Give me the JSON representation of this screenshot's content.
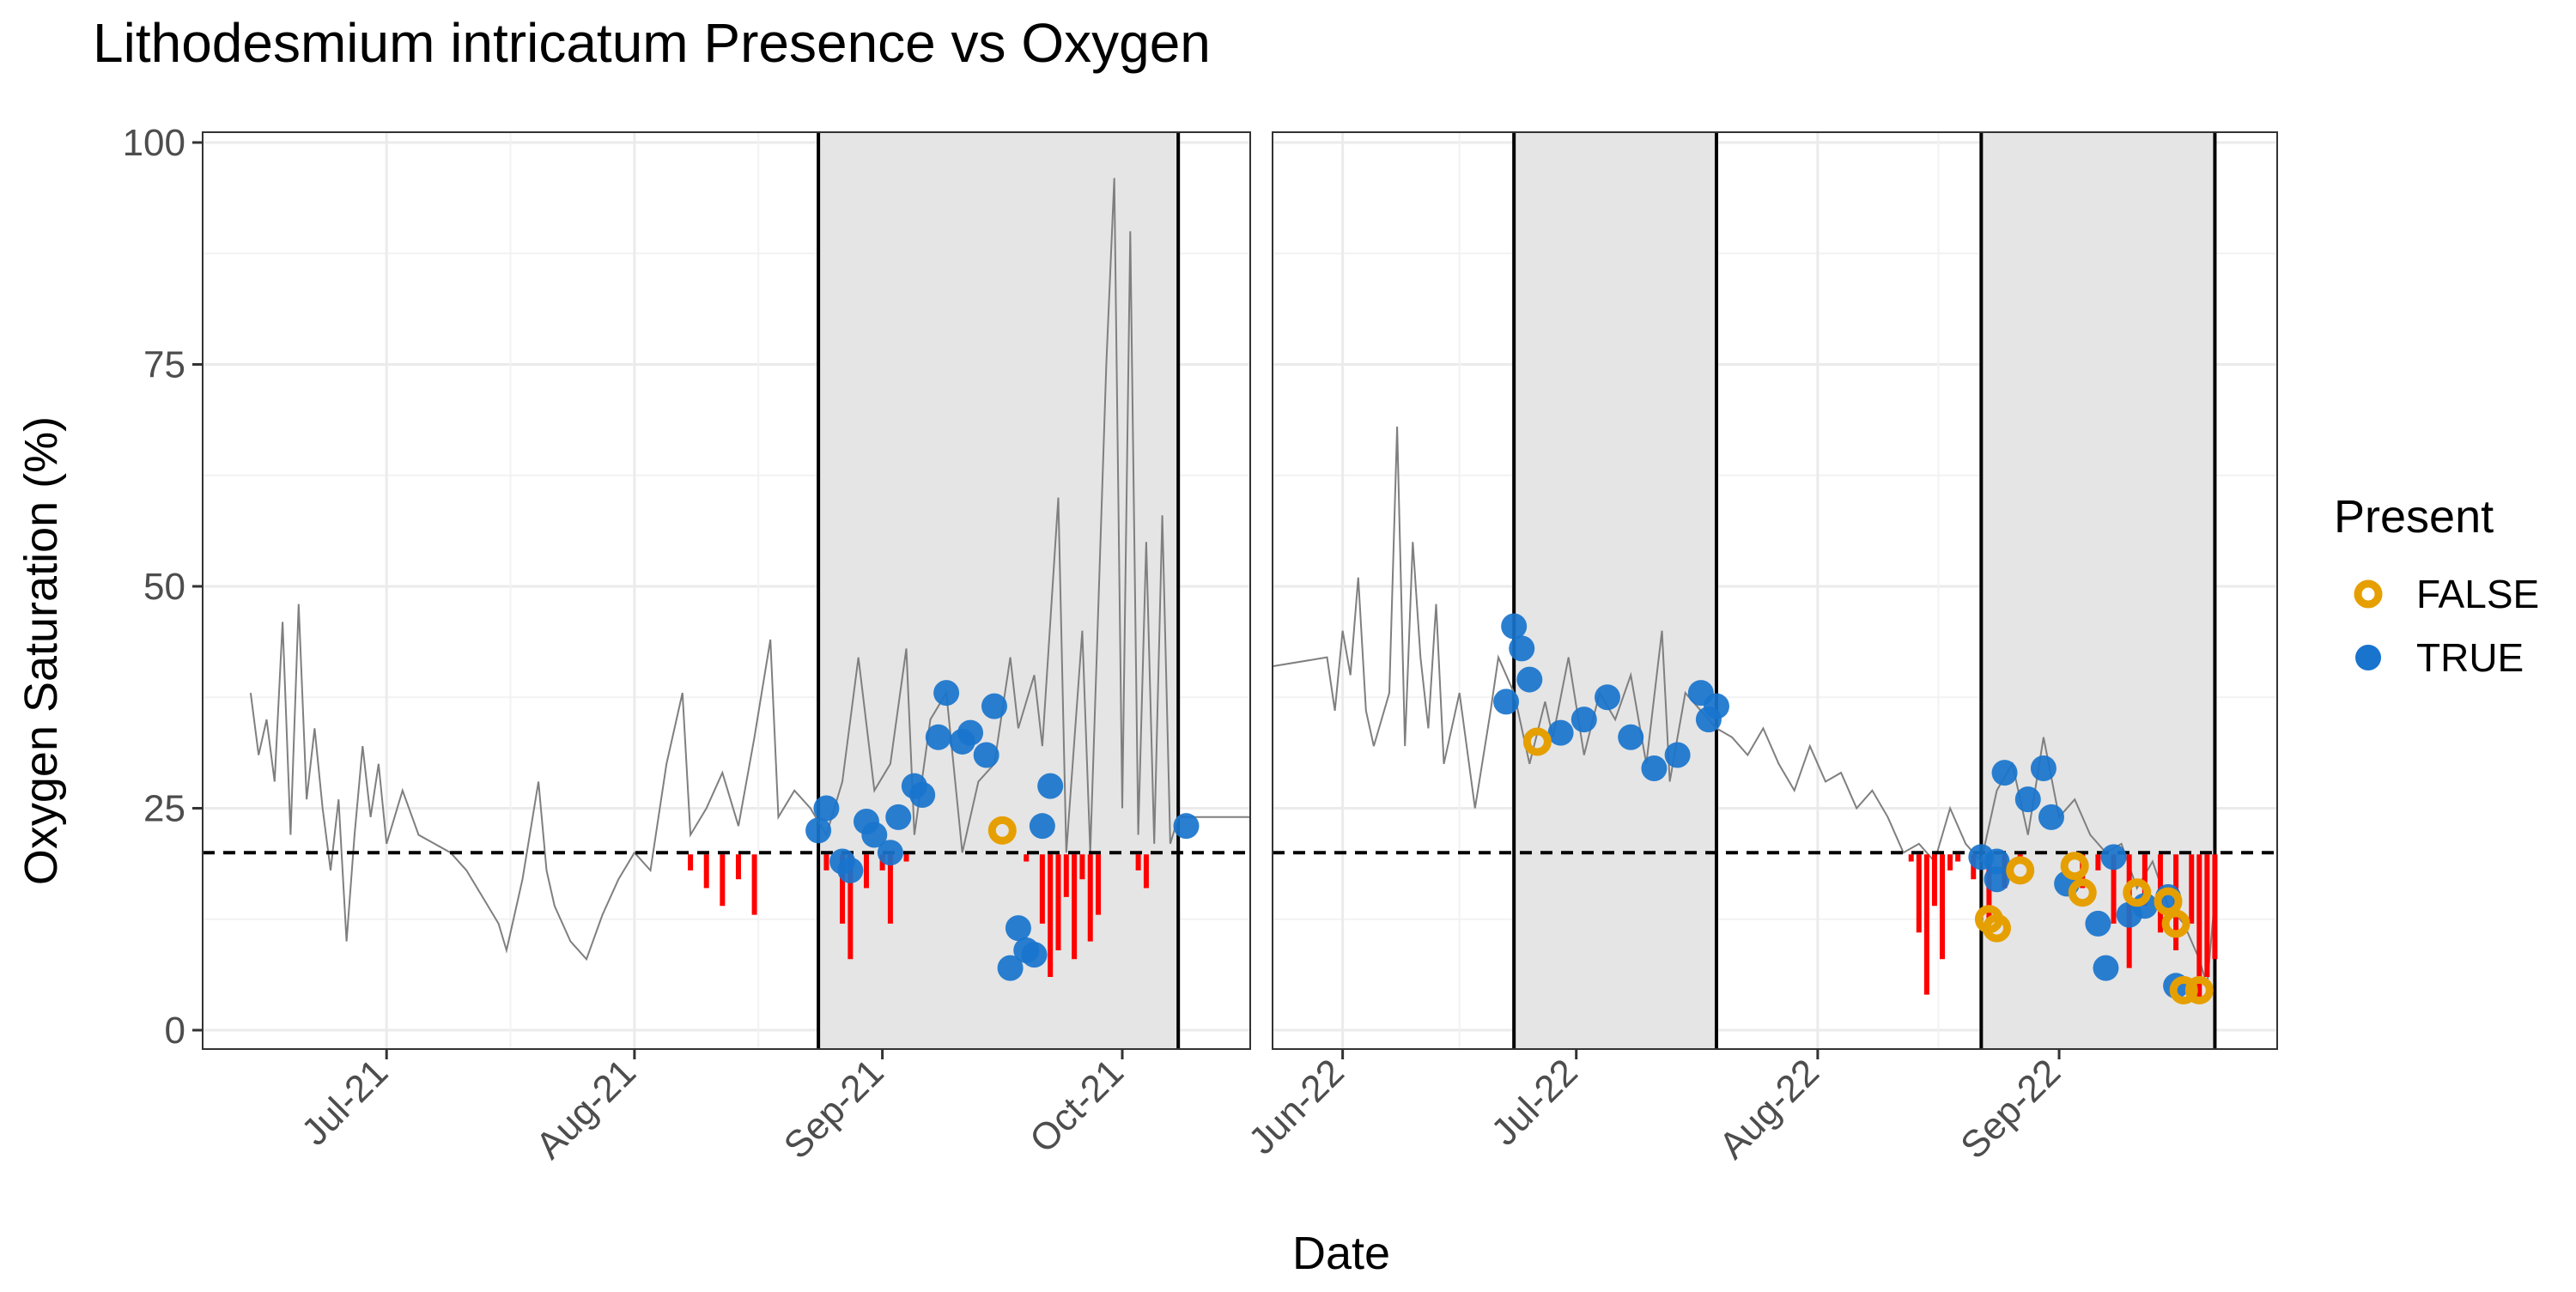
{
  "chart_data": {
    "type": "scatter",
    "title": "Lithodesmium intricatum Presence vs Oxygen",
    "xlabel": "Date",
    "ylabel": "Oxygen Saturation (%)",
    "ylim": [
      0,
      100
    ],
    "y_ticks": [
      0,
      25,
      50,
      75,
      100
    ],
    "threshold": 20,
    "legend": {
      "title": "Present",
      "position": "right",
      "entries": [
        {
          "label": "FALSE",
          "color": "#E69F00"
        },
        {
          "label": "TRUE",
          "color": "#1874CD"
        }
      ]
    },
    "colors": {
      "line": "#7f7f7f",
      "below_threshold": "#ff0000",
      "false_point": "#E69F00",
      "true_point": "#1874CD",
      "shade": "#e5e5e5"
    },
    "panels": [
      {
        "xlim": [
          "2021-06-08",
          "2021-10-17"
        ],
        "ticks": [
          {
            "date": "2021-07-01",
            "label": "Jul-21"
          },
          {
            "date": "2021-08-01",
            "label": "Aug-21"
          },
          {
            "date": "2021-09-01",
            "label": "Sep-21"
          },
          {
            "date": "2021-10-01",
            "label": "Oct-21"
          }
        ],
        "shaded": [
          [
            "2021-08-24",
            "2021-10-08"
          ]
        ],
        "series": [
          [
            "2021-06-14",
            38
          ],
          [
            "2021-06-15",
            31
          ],
          [
            "2021-06-16",
            35
          ],
          [
            "2021-06-17",
            28
          ],
          [
            "2021-06-18",
            46
          ],
          [
            "2021-06-19",
            22
          ],
          [
            "2021-06-20",
            48
          ],
          [
            "2021-06-21",
            26
          ],
          [
            "2021-06-22",
            34
          ],
          [
            "2021-06-23",
            25
          ],
          [
            "2021-06-24",
            18
          ],
          [
            "2021-06-25",
            26
          ],
          [
            "2021-06-26",
            10
          ],
          [
            "2021-06-27",
            22
          ],
          [
            "2021-06-28",
            32
          ],
          [
            "2021-06-29",
            24
          ],
          [
            "2021-06-30",
            30
          ],
          [
            "2021-07-01",
            21
          ],
          [
            "2021-07-03",
            27
          ],
          [
            "2021-07-05",
            22
          ],
          [
            "2021-07-07",
            21
          ],
          [
            "2021-07-09",
            20
          ],
          [
            "2021-07-11",
            18
          ],
          [
            "2021-07-13",
            15
          ],
          [
            "2021-07-15",
            12
          ],
          [
            "2021-07-16",
            9
          ],
          [
            "2021-07-18",
            17
          ],
          [
            "2021-07-20",
            28
          ],
          [
            "2021-07-21",
            18
          ],
          [
            "2021-07-22",
            14
          ],
          [
            "2021-07-24",
            10
          ],
          [
            "2021-07-26",
            8
          ],
          [
            "2021-07-28",
            13
          ],
          [
            "2021-07-30",
            17
          ],
          [
            "2021-08-01",
            20
          ],
          [
            "2021-08-03",
            18
          ],
          [
            "2021-08-05",
            30
          ],
          [
            "2021-08-07",
            38
          ],
          [
            "2021-08-08",
            22
          ],
          [
            "2021-08-10",
            25
          ],
          [
            "2021-08-12",
            29
          ],
          [
            "2021-08-14",
            23
          ],
          [
            "2021-08-16",
            33
          ],
          [
            "2021-08-18",
            44
          ],
          [
            "2021-08-19",
            24
          ],
          [
            "2021-08-21",
            27
          ],
          [
            "2021-08-23",
            25
          ],
          [
            "2021-08-25",
            22
          ],
          [
            "2021-08-27",
            28
          ],
          [
            "2021-08-29",
            42
          ],
          [
            "2021-08-31",
            27
          ],
          [
            "2021-09-02",
            30
          ],
          [
            "2021-09-04",
            43
          ],
          [
            "2021-09-05",
            22
          ],
          [
            "2021-09-07",
            35
          ],
          [
            "2021-09-09",
            38
          ],
          [
            "2021-09-11",
            20
          ],
          [
            "2021-09-13",
            28
          ],
          [
            "2021-09-15",
            30
          ],
          [
            "2021-09-17",
            42
          ],
          [
            "2021-09-18",
            34
          ],
          [
            "2021-09-20",
            40
          ],
          [
            "2021-09-21",
            32
          ],
          [
            "2021-09-23",
            60
          ],
          [
            "2021-09-24",
            20
          ],
          [
            "2021-09-26",
            45
          ],
          [
            "2021-09-27",
            20
          ],
          [
            "2021-09-29",
            75
          ],
          [
            "2021-09-30",
            96
          ],
          [
            "2021-10-01",
            25
          ],
          [
            "2021-10-02",
            90
          ],
          [
            "2021-10-03",
            22
          ],
          [
            "2021-10-04",
            55
          ],
          [
            "2021-10-05",
            21
          ],
          [
            "2021-10-06",
            58
          ],
          [
            "2021-10-07",
            21
          ],
          [
            "2021-10-08",
            24
          ],
          [
            "2021-10-17",
            24
          ]
        ],
        "below_threshold": [
          [
            "2021-08-08",
            18
          ],
          [
            "2021-08-10",
            16
          ],
          [
            "2021-08-12",
            14
          ],
          [
            "2021-08-14",
            17
          ],
          [
            "2021-08-16",
            13
          ],
          [
            "2021-08-25",
            18
          ],
          [
            "2021-08-27",
            12
          ],
          [
            "2021-08-28",
            8
          ],
          [
            "2021-08-30",
            16
          ],
          [
            "2021-09-01",
            18
          ],
          [
            "2021-09-02",
            12
          ],
          [
            "2021-09-04",
            19
          ],
          [
            "2021-09-19",
            19
          ],
          [
            "2021-09-21",
            12
          ],
          [
            "2021-09-22",
            6
          ],
          [
            "2021-09-23",
            9
          ],
          [
            "2021-09-24",
            15
          ],
          [
            "2021-09-25",
            8
          ],
          [
            "2021-09-26",
            17
          ],
          [
            "2021-09-27",
            10
          ],
          [
            "2021-09-28",
            13
          ],
          [
            "2021-10-03",
            18
          ],
          [
            "2021-10-04",
            16
          ]
        ],
        "points_true": [
          [
            "2021-08-24",
            22.5
          ],
          [
            "2021-08-25",
            25
          ],
          [
            "2021-08-27",
            19
          ],
          [
            "2021-08-28",
            18
          ],
          [
            "2021-08-30",
            23.5
          ],
          [
            "2021-08-31",
            22
          ],
          [
            "2021-09-02",
            20
          ],
          [
            "2021-09-03",
            24
          ],
          [
            "2021-09-05",
            27.5
          ],
          [
            "2021-09-06",
            26.5
          ],
          [
            "2021-09-08",
            33
          ],
          [
            "2021-09-09",
            38
          ],
          [
            "2021-09-11",
            32.5
          ],
          [
            "2021-09-12",
            33.5
          ],
          [
            "2021-09-14",
            31
          ],
          [
            "2021-09-15",
            36.5
          ],
          [
            "2021-09-17",
            7
          ],
          [
            "2021-09-18",
            11.5
          ],
          [
            "2021-09-19",
            9
          ],
          [
            "2021-09-20",
            8.5
          ],
          [
            "2021-09-21",
            23
          ],
          [
            "2021-09-22",
            27.5
          ],
          [
            "2021-10-09",
            23
          ]
        ],
        "points_false": [
          [
            "2021-09-16",
            22.5
          ]
        ]
      },
      {
        "xlim": [
          "2022-05-23",
          "2022-09-29"
        ],
        "ticks": [
          {
            "date": "2022-06-01",
            "label": "Jun-22"
          },
          {
            "date": "2022-07-01",
            "label": "Jul-22"
          },
          {
            "date": "2022-08-01",
            "label": "Aug-22"
          },
          {
            "date": "2022-09-01",
            "label": "Sep-22"
          }
        ],
        "shaded": [
          [
            "2022-06-23",
            "2022-07-19"
          ],
          [
            "2022-08-22",
            "2022-09-21"
          ]
        ],
        "series": [
          [
            "2022-05-23",
            41
          ],
          [
            "2022-05-30",
            42
          ],
          [
            "2022-05-31",
            36
          ],
          [
            "2022-06-01",
            45
          ],
          [
            "2022-06-02",
            40
          ],
          [
            "2022-06-03",
            51
          ],
          [
            "2022-06-04",
            36
          ],
          [
            "2022-06-05",
            32
          ],
          [
            "2022-06-07",
            38
          ],
          [
            "2022-06-08",
            68
          ],
          [
            "2022-06-09",
            32
          ],
          [
            "2022-06-10",
            55
          ],
          [
            "2022-06-11",
            42
          ],
          [
            "2022-06-12",
            34
          ],
          [
            "2022-06-13",
            48
          ],
          [
            "2022-06-14",
            30
          ],
          [
            "2022-06-16",
            38
          ],
          [
            "2022-06-18",
            25
          ],
          [
            "2022-06-20",
            36
          ],
          [
            "2022-06-21",
            42
          ],
          [
            "2022-06-23",
            38
          ],
          [
            "2022-06-25",
            30
          ],
          [
            "2022-06-27",
            37
          ],
          [
            "2022-06-28",
            33
          ],
          [
            "2022-06-30",
            42
          ],
          [
            "2022-07-02",
            31
          ],
          [
            "2022-07-04",
            38
          ],
          [
            "2022-07-06",
            35
          ],
          [
            "2022-07-08",
            40
          ],
          [
            "2022-07-10",
            30
          ],
          [
            "2022-07-12",
            45
          ],
          [
            "2022-07-13",
            28
          ],
          [
            "2022-07-15",
            38
          ],
          [
            "2022-07-17",
            36
          ],
          [
            "2022-07-19",
            34
          ],
          [
            "2022-07-21",
            33
          ],
          [
            "2022-07-23",
            31
          ],
          [
            "2022-07-25",
            34
          ],
          [
            "2022-07-27",
            30
          ],
          [
            "2022-07-29",
            27
          ],
          [
            "2022-07-31",
            32
          ],
          [
            "2022-08-02",
            28
          ],
          [
            "2022-08-04",
            29
          ],
          [
            "2022-08-06",
            25
          ],
          [
            "2022-08-08",
            27
          ],
          [
            "2022-08-10",
            24
          ],
          [
            "2022-08-12",
            20
          ],
          [
            "2022-08-14",
            21
          ],
          [
            "2022-08-16",
            19
          ],
          [
            "2022-08-18",
            25
          ],
          [
            "2022-08-20",
            21
          ],
          [
            "2022-08-22",
            19
          ],
          [
            "2022-08-24",
            27
          ],
          [
            "2022-08-26",
            30
          ],
          [
            "2022-08-28",
            22
          ],
          [
            "2022-08-30",
            33
          ],
          [
            "2022-09-01",
            24
          ],
          [
            "2022-09-03",
            26
          ],
          [
            "2022-09-05",
            22
          ],
          [
            "2022-09-07",
            20
          ],
          [
            "2022-09-09",
            21
          ],
          [
            "2022-09-11",
            16
          ],
          [
            "2022-09-13",
            19
          ],
          [
            "2022-09-15",
            14
          ],
          [
            "2022-09-17",
            12
          ],
          [
            "2022-09-19",
            8
          ],
          [
            "2022-09-20",
            5
          ],
          [
            "2022-09-21",
            15
          ]
        ],
        "below_threshold": [
          [
            "2022-08-13",
            19
          ],
          [
            "2022-08-14",
            11
          ],
          [
            "2022-08-15",
            4
          ],
          [
            "2022-08-16",
            14
          ],
          [
            "2022-08-17",
            8
          ],
          [
            "2022-08-18",
            18
          ],
          [
            "2022-08-19",
            19
          ],
          [
            "2022-08-21",
            17
          ],
          [
            "2022-08-23",
            12
          ],
          [
            "2022-08-25",
            16
          ],
          [
            "2022-08-27",
            19
          ],
          [
            "2022-09-04",
            16
          ],
          [
            "2022-09-06",
            18
          ],
          [
            "2022-09-08",
            12
          ],
          [
            "2022-09-10",
            7
          ],
          [
            "2022-09-12",
            14
          ],
          [
            "2022-09-14",
            11
          ],
          [
            "2022-09-16",
            9
          ],
          [
            "2022-09-18",
            12
          ],
          [
            "2022-09-19",
            3
          ],
          [
            "2022-09-20",
            6
          ],
          [
            "2022-09-21",
            8
          ]
        ],
        "points_true": [
          [
            "2022-06-22",
            37
          ],
          [
            "2022-06-23",
            45.5
          ],
          [
            "2022-06-24",
            43
          ],
          [
            "2022-06-25",
            39.5
          ],
          [
            "2022-06-29",
            33.5
          ],
          [
            "2022-07-02",
            35
          ],
          [
            "2022-07-05",
            37.5
          ],
          [
            "2022-07-08",
            33
          ],
          [
            "2022-07-11",
            29.5
          ],
          [
            "2022-07-14",
            31
          ],
          [
            "2022-07-17",
            38
          ],
          [
            "2022-07-18",
            35
          ],
          [
            "2022-07-19",
            36.5
          ],
          [
            "2022-08-22",
            19.5
          ],
          [
            "2022-08-24",
            19
          ],
          [
            "2022-08-24",
            17
          ],
          [
            "2022-08-25",
            29
          ],
          [
            "2022-08-28",
            26
          ],
          [
            "2022-08-30",
            29.5
          ],
          [
            "2022-08-31",
            24
          ],
          [
            "2022-09-02",
            16.5
          ],
          [
            "2022-09-06",
            12
          ],
          [
            "2022-09-07",
            7
          ],
          [
            "2022-09-08",
            19.5
          ],
          [
            "2022-09-10",
            13
          ],
          [
            "2022-09-12",
            14
          ],
          [
            "2022-09-15",
            15
          ],
          [
            "2022-09-16",
            5
          ]
        ],
        "points_false": [
          [
            "2022-06-26",
            32.5
          ],
          [
            "2022-08-23",
            12.5
          ],
          [
            "2022-08-24",
            11.5
          ],
          [
            "2022-08-27",
            18
          ],
          [
            "2022-09-03",
            18.5
          ],
          [
            "2022-09-04",
            15.5
          ],
          [
            "2022-09-11",
            15.5
          ],
          [
            "2022-09-15",
            14.5
          ],
          [
            "2022-09-16",
            12
          ],
          [
            "2022-09-17",
            4.5
          ],
          [
            "2022-09-19",
            4.5
          ]
        ]
      }
    ]
  }
}
